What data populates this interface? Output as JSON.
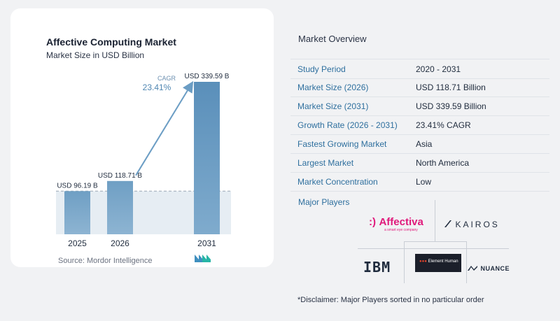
{
  "chart": {
    "title": "Affective Computing Market",
    "subtitle": "Market Size in USD Billion",
    "source": "Source:  Mordor Intelligence",
    "cagr_label": "CAGR",
    "cagr_value": "23.41%"
  },
  "chart_data": {
    "type": "bar",
    "title": "Affective Computing Market",
    "subtitle": "Market Size in USD Billion",
    "categories": [
      "2025",
      "2026",
      "2031"
    ],
    "values": [
      96.19,
      118.71,
      339.59
    ],
    "data_labels": [
      "USD 96.19 B",
      "USD 118.71 B",
      "USD 339.59 B"
    ],
    "annotation": {
      "label": "CAGR",
      "value": "23.41%"
    },
    "ylim": [
      0,
      339.59
    ],
    "grid": false,
    "colors": {
      "bar_light": "#7aa8c9",
      "bar_dark": "#4f86b2",
      "arrow": "#6b9dc4",
      "band": "#dbe5ee"
    }
  },
  "overview": {
    "title": "Market Overview",
    "rows": [
      {
        "label": "Study Period",
        "value": "2020 - 2031"
      },
      {
        "label": "Market Size (2026)",
        "value": "USD 118.71 Billion"
      },
      {
        "label": "Market Size (2031)",
        "value": "USD 339.59 Billion"
      },
      {
        "label": "Growth Rate (2026 - 2031)",
        "value": "23.41% CAGR"
      },
      {
        "label": "Fastest Growing Market",
        "value": "Asia"
      },
      {
        "label": "Largest Market",
        "value": "North America"
      },
      {
        "label": "Market Concentration",
        "value": "Low"
      }
    ]
  },
  "players": {
    "label": "Major Players",
    "affectiva": {
      "mark": ":)",
      "name": "Affectiva",
      "tagline": "a smart eye company"
    },
    "kairos": {
      "name": "KAIROS"
    },
    "ibm": {
      "name": "IBM"
    },
    "element_human": {
      "name": "Element Human"
    },
    "nuance": {
      "name": "NUANCE"
    }
  },
  "disclaimer": "*Disclaimer: Major Players sorted in no particular order"
}
